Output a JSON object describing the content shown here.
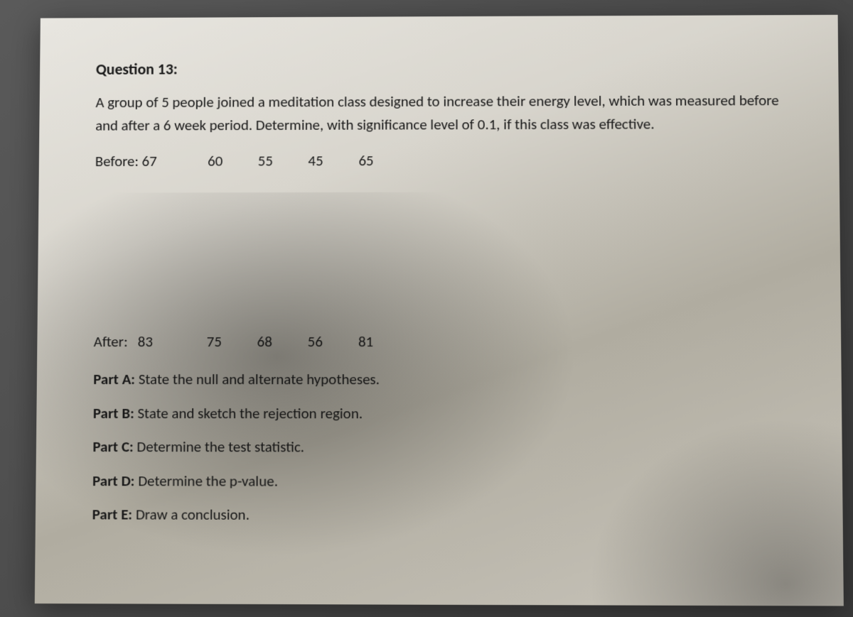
{
  "question": {
    "title": "Question 13:",
    "description": "A group of 5 people joined a meditation class designed to increase their energy level, which was measured before and after a 6 week period.  Determine, with significance level of 0.1, if this class was effective.",
    "before": {
      "label": "Before:",
      "values": [
        "67",
        "60",
        "55",
        "45",
        "65"
      ]
    },
    "after": {
      "label": "After:",
      "values": [
        "83",
        "75",
        "68",
        "56",
        "81"
      ]
    },
    "parts": {
      "a": {
        "label": "Part A:",
        "text": " State the null and alternate hypotheses."
      },
      "b": {
        "label": "Part B:",
        "text": " State and sketch the rejection region."
      },
      "c": {
        "label": "Part C:",
        "text": " Determine the test statistic."
      },
      "d": {
        "label": "Part D:",
        "text": " Determine the p-value."
      },
      "e": {
        "label": "Part E:",
        "text": " Draw a conclusion."
      }
    }
  },
  "style": {
    "font_family": "Calibri, Arial, sans-serif",
    "title_fontsize": 22,
    "body_fontsize": 21,
    "text_color": "#1a1a1a",
    "paper_bg_light": "#e8e6e0",
    "paper_bg_dark": "#b0aca0",
    "page_bg": "#4a4a4a"
  }
}
